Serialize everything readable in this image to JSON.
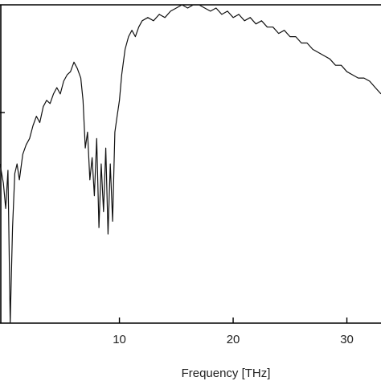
{
  "chart_data": {
    "type": "line",
    "title": "",
    "xlabel": "Frequency [THz]",
    "ylabel": "",
    "xlim": [
      -0.5,
      33
    ],
    "ylim": [
      0,
      1
    ],
    "x_ticks": [
      10,
      20,
      30
    ],
    "x_tick_labels": [
      "10",
      "20",
      "30"
    ],
    "grid": false,
    "legend": "none",
    "series": [
      {
        "x": [
          -0.5,
          -0.2,
          0.0,
          0.2,
          0.4,
          0.6,
          0.8,
          1.0,
          1.2,
          1.5,
          1.8,
          2.1,
          2.4,
          2.7,
          3.0,
          3.3,
          3.6,
          3.9,
          4.2,
          4.5,
          4.8,
          5.1,
          5.4,
          5.7,
          6.0,
          6.3,
          6.6,
          6.8,
          7.0,
          7.2,
          7.4,
          7.6,
          7.8,
          8.0,
          8.2,
          8.4,
          8.6,
          8.8,
          9.0,
          9.2,
          9.4,
          9.6,
          9.8,
          10.0,
          10.2,
          10.5,
          10.8,
          11.1,
          11.4,
          11.7,
          12.0,
          12.5,
          13.0,
          13.5,
          14.0,
          14.5,
          15.0,
          15.5,
          16.0,
          16.5,
          17.0,
          17.5,
          18.0,
          18.5,
          19.0,
          19.5,
          20.0,
          20.5,
          21.0,
          21.5,
          22.0,
          22.5,
          23.0,
          23.5,
          24.0,
          24.5,
          25.0,
          25.5,
          26.0,
          26.5,
          27.0,
          27.5,
          28.0,
          28.5,
          29.0,
          29.5,
          30.0,
          30.5,
          31.0,
          31.5,
          32.0,
          32.5,
          33.0
        ],
        "y": [
          0.5,
          0.44,
          0.36,
          0.48,
          0.0,
          0.3,
          0.47,
          0.5,
          0.45,
          0.53,
          0.56,
          0.58,
          0.62,
          0.65,
          0.63,
          0.68,
          0.7,
          0.69,
          0.72,
          0.74,
          0.72,
          0.76,
          0.78,
          0.79,
          0.82,
          0.8,
          0.77,
          0.7,
          0.55,
          0.6,
          0.45,
          0.52,
          0.4,
          0.58,
          0.3,
          0.5,
          0.35,
          0.55,
          0.28,
          0.5,
          0.32,
          0.6,
          0.65,
          0.7,
          0.78,
          0.86,
          0.9,
          0.92,
          0.9,
          0.93,
          0.95,
          0.96,
          0.95,
          0.97,
          0.96,
          0.98,
          0.99,
          1.0,
          0.99,
          1.0,
          1.0,
          0.99,
          0.98,
          0.99,
          0.97,
          0.98,
          0.96,
          0.97,
          0.95,
          0.96,
          0.94,
          0.95,
          0.93,
          0.93,
          0.91,
          0.92,
          0.9,
          0.9,
          0.88,
          0.88,
          0.86,
          0.85,
          0.84,
          0.83,
          0.81,
          0.81,
          0.79,
          0.78,
          0.77,
          0.77,
          0.76,
          0.74,
          0.72
        ]
      }
    ]
  }
}
